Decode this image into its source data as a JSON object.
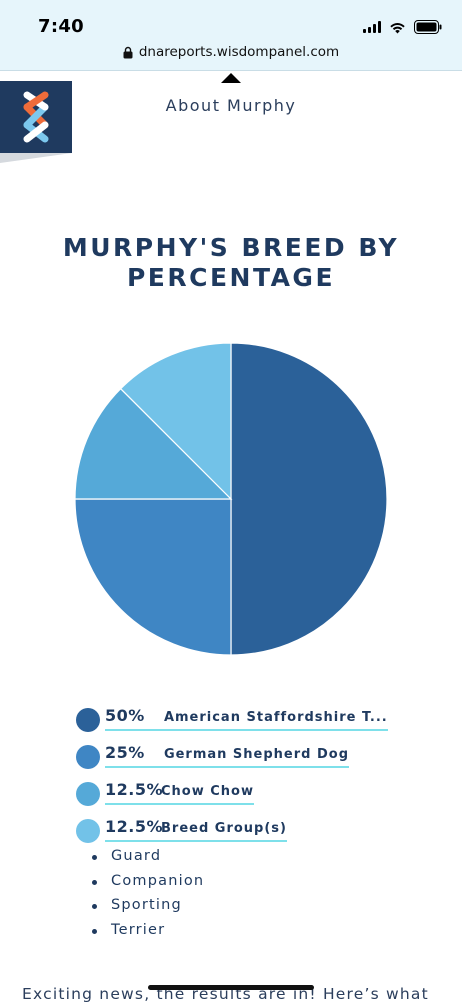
{
  "status_bar": {
    "time": "7:40"
  },
  "browser": {
    "url": "dnareports.wisdompanel.com"
  },
  "nav": {
    "title": "About Murphy"
  },
  "heading": {
    "title": "MURPHY'S BREED BY PERCENTAGE"
  },
  "colors": {
    "title": "#1f3a5f",
    "underline": "#7ee0ea",
    "logo_bg": "#1f3a5f",
    "logo_orange": "#ef6c3a",
    "logo_blue": "#7cc8ee"
  },
  "chart_data": {
    "type": "pie",
    "title": "MURPHY'S BREED BY PERCENTAGE",
    "slices": [
      {
        "label": "American Staffordshire Terrier",
        "value": 50,
        "color": "#2b6199"
      },
      {
        "label": "German Shepherd Dog",
        "value": 25,
        "color": "#3f86c4"
      },
      {
        "label": "Chow Chow",
        "value": 12.5,
        "color": "#55a9d8"
      },
      {
        "label": "Breed Group(s)",
        "value": 12.5,
        "color": "#72c2e8"
      }
    ]
  },
  "legend": [
    {
      "pct": "50%",
      "name": "American Staffordshire T...",
      "color": "#2b6199"
    },
    {
      "pct": "25%",
      "name": "German Shepherd Dog",
      "color": "#3f86c4"
    },
    {
      "pct": "12.5%",
      "name": "Chow Chow",
      "color": "#55a9d8"
    },
    {
      "pct": "12.5%",
      "name": "Breed Group(s)",
      "color": "#72c2e8"
    }
  ],
  "breed_groups": [
    "Guard",
    "Companion",
    "Sporting",
    "Terrier"
  ],
  "footer_text": "Exciting news, the results are in! Here’s what"
}
